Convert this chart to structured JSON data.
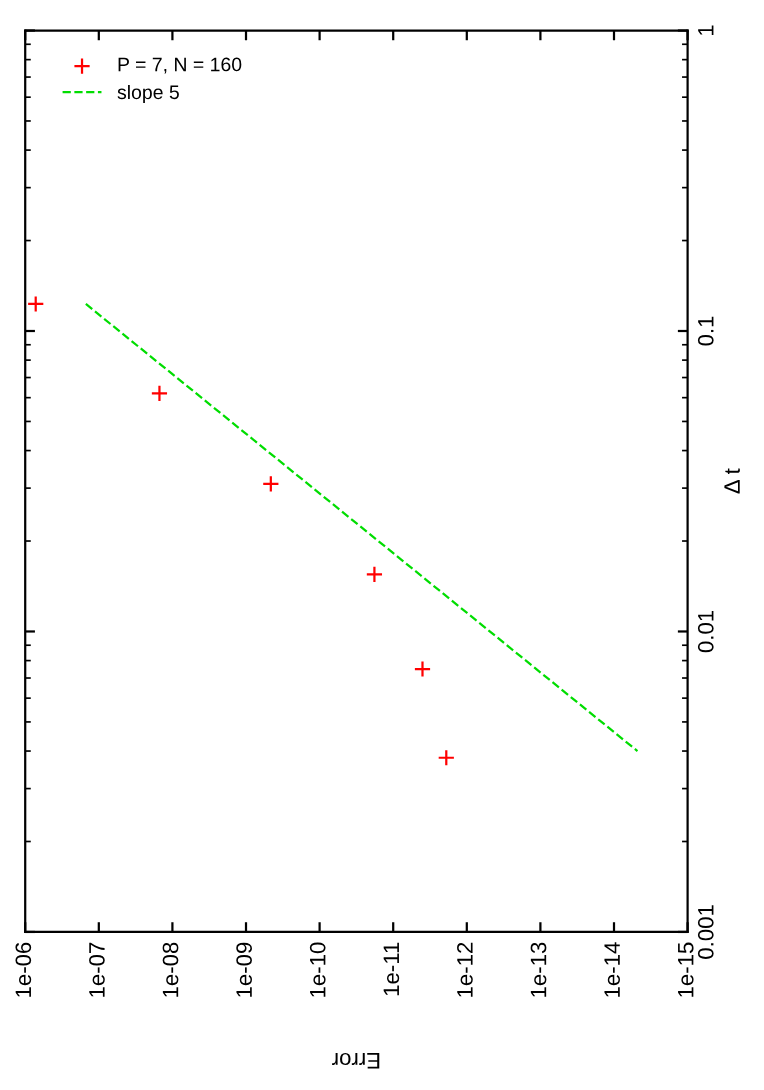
{
  "chart_data": {
    "type": "scatter",
    "xlabel": "Error",
    "ylabel": "Δ t",
    "log": "xy",
    "xlim": [
      1e-06,
      1e-15
    ],
    "ylim": [
      0.001,
      1
    ],
    "xticks": [
      {
        "value": 1e-06,
        "label": "1e-06"
      },
      {
        "value": 1e-07,
        "label": "1e-07"
      },
      {
        "value": 1e-08,
        "label": "1e-08"
      },
      {
        "value": 1e-09,
        "label": "1e-09"
      },
      {
        "value": 1e-10,
        "label": "1e-10"
      },
      {
        "value": 1e-11,
        "label": "1e-11"
      },
      {
        "value": 1e-12,
        "label": "1e-12"
      },
      {
        "value": 1e-13,
        "label": "1e-13"
      },
      {
        "value": 1e-14,
        "label": "1e-14"
      },
      {
        "value": 1e-15,
        "label": "1e-15"
      }
    ],
    "yticks": [
      0.001,
      0.01,
      0.1,
      1
    ],
    "grid": false,
    "legend": "top left",
    "series": [
      {
        "name": "P = 7, N = 160",
        "marker": "cross",
        "color": "#ff0000",
        "x": [
          7.2e-07,
          1.5e-08,
          4.6e-10,
          1.8e-11,
          4e-12,
          1.9e-12
        ],
        "values": [
          0.123,
          0.062,
          0.031,
          0.0155,
          0.0075,
          0.0038
        ]
      },
      {
        "name": "slope 5",
        "type": "line",
        "line_style": "dashed",
        "color": "#00dd00",
        "x": [
          1.5e-07,
          4.8e-15
        ],
        "values": [
          0.123,
          0.004
        ]
      }
    ]
  }
}
